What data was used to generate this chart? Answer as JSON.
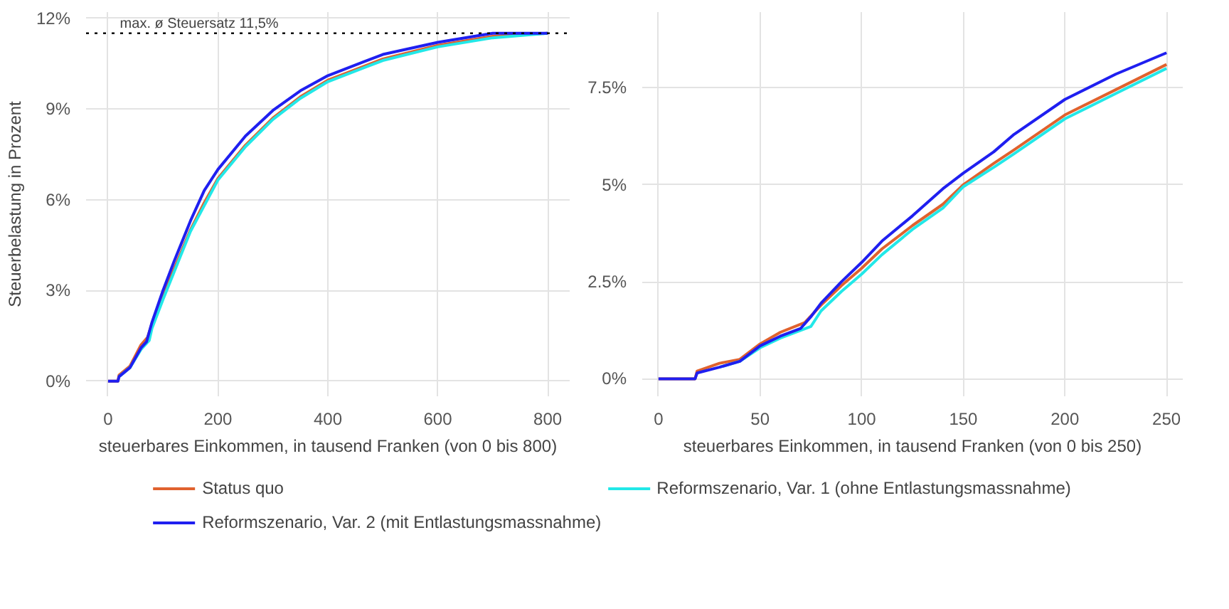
{
  "chart_data": [
    {
      "type": "line",
      "ylabel": "Steuerbelastung in Prozent",
      "xlabel": "steuerbares Einkommen, in tausend Franken (von 0 bis 800)",
      "xlim": [
        -40,
        840
      ],
      "ylim": [
        -0.5,
        12.2
      ],
      "xticks": [
        0,
        200,
        400,
        600,
        800
      ],
      "yticks": [
        {
          "value": 0,
          "label": "0%"
        },
        {
          "value": 3,
          "label": "3%"
        },
        {
          "value": 6,
          "label": "6%"
        },
        {
          "value": 9,
          "label": "9%"
        },
        {
          "value": 12,
          "label": "12%"
        }
      ],
      "grid": true,
      "legend": "bottom",
      "line_style": "solid",
      "ref_lines": [
        {
          "axis": "y",
          "value": 11.5,
          "label": "max. ø Steuersatz 11,5%",
          "color": "#000000",
          "line_style": "dotted"
        }
      ],
      "series": [
        {
          "name": "Status quo",
          "color": "#e0622e",
          "x": [
            0,
            18,
            20,
            40,
            60,
            72,
            80,
            100,
            120,
            150,
            175,
            200,
            250,
            300,
            350,
            400,
            500,
            600,
            700,
            800
          ],
          "values": [
            0,
            0,
            0.2,
            0.5,
            1.2,
            1.45,
            1.9,
            2.85,
            3.7,
            5.0,
            5.9,
            6.7,
            7.8,
            8.7,
            9.4,
            9.95,
            10.65,
            11.1,
            11.4,
            11.5
          ]
        },
        {
          "name": "Reformszenario, Var. 1 (ohne Entlastungsmassnahme)",
          "color": "#22e8e8",
          "x": [
            20,
            40,
            60,
            75,
            80,
            100,
            120,
            150,
            175,
            200,
            250,
            300,
            350,
            400,
            500,
            600,
            700,
            800
          ],
          "values": [
            0.15,
            0.45,
            1.05,
            1.35,
            1.75,
            2.7,
            3.6,
            4.95,
            5.8,
            6.65,
            7.75,
            8.65,
            9.35,
            9.9,
            10.6,
            11.05,
            11.35,
            11.5
          ]
        },
        {
          "name": "Reformszenario, Var. 2 (mit Entlastungsmassnahme)",
          "color": "#1f1ff0",
          "x": [
            0,
            18,
            20,
            40,
            60,
            70,
            80,
            100,
            120,
            150,
            175,
            200,
            250,
            300,
            350,
            400,
            500,
            600,
            700,
            800
          ],
          "values": [
            0,
            0,
            0.15,
            0.45,
            1.1,
            1.3,
            1.95,
            3.0,
            3.95,
            5.3,
            6.3,
            7.0,
            8.1,
            8.95,
            9.6,
            10.1,
            10.8,
            11.2,
            11.5,
            11.5
          ]
        }
      ]
    },
    {
      "type": "line",
      "xlabel": "steuerbares Einkommen, in tausend Franken (von 0 bis 250)",
      "xlim": [
        -8,
        258
      ],
      "ylim": [
        -0.45,
        9.45
      ],
      "xticks": [
        0,
        50,
        100,
        150,
        200,
        250
      ],
      "yticks": [
        {
          "value": 0,
          "label": "0%"
        },
        {
          "value": 2.5,
          "label": "2.5%"
        },
        {
          "value": 5,
          "label": "5%"
        },
        {
          "value": 7.5,
          "label": "7.5%"
        }
      ],
      "grid": true,
      "line_style": "solid",
      "series": [
        {
          "color": "#e0622e",
          "x": [
            0,
            18,
            19,
            30,
            40,
            50,
            60,
            72,
            80,
            90,
            100,
            110,
            125,
            140,
            150,
            165,
            175,
            200,
            225,
            250
          ],
          "values": [
            0,
            0,
            0.2,
            0.4,
            0.5,
            0.9,
            1.2,
            1.45,
            1.9,
            2.4,
            2.85,
            3.35,
            3.95,
            4.5,
            5.0,
            5.55,
            5.9,
            6.8,
            7.45,
            8.1
          ]
        },
        {
          "color": "#22e8e8",
          "x": [
            30,
            40,
            50,
            60,
            75,
            80,
            90,
            100,
            110,
            125,
            140,
            150,
            165,
            175,
            200,
            225,
            250
          ],
          "values": [
            0.3,
            0.45,
            0.8,
            1.05,
            1.35,
            1.75,
            2.25,
            2.7,
            3.2,
            3.85,
            4.4,
            4.95,
            5.45,
            5.8,
            6.7,
            7.35,
            8.0
          ]
        },
        {
          "color": "#1f1ff0",
          "x": [
            0,
            18,
            19,
            30,
            40,
            50,
            60,
            70,
            75,
            80,
            90,
            100,
            110,
            125,
            140,
            150,
            165,
            175,
            200,
            225,
            250
          ],
          "values": [
            0,
            0,
            0.15,
            0.3,
            0.45,
            0.85,
            1.1,
            1.3,
            1.6,
            1.95,
            2.5,
            3.0,
            3.55,
            4.2,
            4.9,
            5.3,
            5.85,
            6.3,
            7.2,
            7.85,
            8.4
          ]
        }
      ]
    }
  ]
}
